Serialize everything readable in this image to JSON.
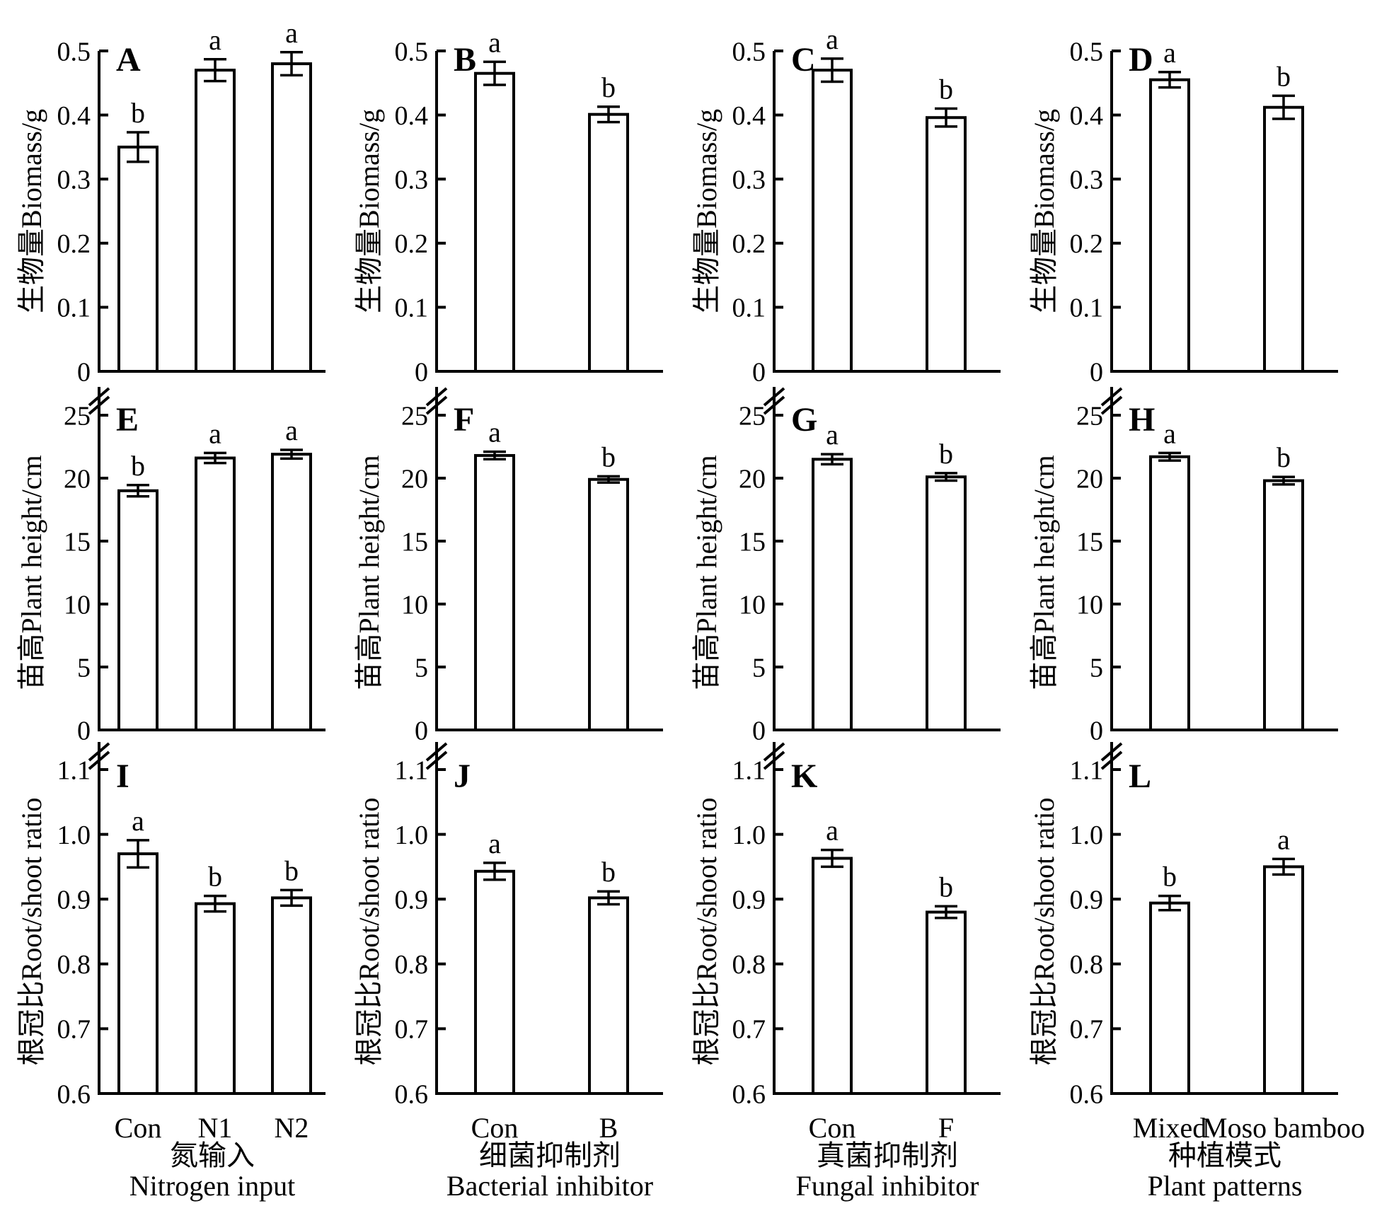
{
  "figure": {
    "background": "#ffffff",
    "ink": "#000000",
    "description": "Twelve-panel bar chart figure (A-L): effects of nitrogen input, bacterial inhibitor, fungal inhibitor and plant patterns on biomass, plant height and root/shoot ratio"
  },
  "chart_data": {
    "type": "bar",
    "bar_fill": "#ffffff",
    "bar_stroke": "#000000",
    "error_bar_style": "capped, plus-minus",
    "rows": [
      {
        "ylabel": "生物量Biomass/g",
        "ylim": [
          0,
          0.5
        ],
        "yticks": [
          0,
          0.1,
          0.2,
          0.3,
          0.4,
          0.5
        ],
        "ytick_labels": [
          "0",
          "0.1",
          "0.2",
          "0.3",
          "0.4",
          "0.5"
        ],
        "axis_break_top": false
      },
      {
        "ylabel": "苗高Plant height/cm",
        "ylim": [
          0,
          25
        ],
        "yticks": [
          0,
          5,
          10,
          15,
          20,
          25
        ],
        "ytick_labels": [
          "0",
          "5",
          "10",
          "15",
          "20",
          "25"
        ],
        "axis_break_top": true
      },
      {
        "ylabel": "根冠比Root/shoot ratio",
        "ylim": [
          0.6,
          1.1
        ],
        "yticks": [
          0.6,
          0.7,
          0.8,
          0.9,
          1.0,
          1.1
        ],
        "ytick_labels": [
          "0.6",
          "0.7",
          "0.8",
          "0.9",
          "1.0",
          "1.1"
        ],
        "axis_break_top": true
      }
    ],
    "columns": [
      {
        "categories": [
          "Con",
          "N1",
          "N2"
        ],
        "factor_cn": "氮输入",
        "factor_en": "Nitrogen input"
      },
      {
        "categories": [
          "Con",
          "B"
        ],
        "factor_cn": "细菌抑制剂",
        "factor_en": "Bacterial inhibitor"
      },
      {
        "categories": [
          "Con",
          "F"
        ],
        "factor_cn": "真菌抑制剂",
        "factor_en": "Fungal inhibitor"
      },
      {
        "categories": [
          "Mixed",
          "Moso bamboo"
        ],
        "factor_cn": "种植模式",
        "factor_en": "Plant patterns"
      }
    ],
    "panels": [
      {
        "letter": "A",
        "row": 0,
        "col": 0,
        "values": [
          0.35,
          0.47,
          0.48
        ],
        "errors": [
          0.023,
          0.017,
          0.018
        ],
        "sig": [
          "b",
          "a",
          "a"
        ]
      },
      {
        "letter": "B",
        "row": 0,
        "col": 1,
        "values": [
          0.465,
          0.401
        ],
        "errors": [
          0.018,
          0.012
        ],
        "sig": [
          "a",
          "b"
        ]
      },
      {
        "letter": "C",
        "row": 0,
        "col": 2,
        "values": [
          0.47,
          0.396
        ],
        "errors": [
          0.018,
          0.014
        ],
        "sig": [
          "a",
          "b"
        ]
      },
      {
        "letter": "D",
        "row": 0,
        "col": 3,
        "values": [
          0.455,
          0.412
        ],
        "errors": [
          0.012,
          0.018
        ],
        "sig": [
          "a",
          "b"
        ]
      },
      {
        "letter": "E",
        "row": 1,
        "col": 0,
        "values": [
          19.0,
          21.6,
          21.9
        ],
        "errors": [
          0.45,
          0.4,
          0.35
        ],
        "sig": [
          "b",
          "a",
          "a"
        ]
      },
      {
        "letter": "F",
        "row": 1,
        "col": 1,
        "values": [
          21.8,
          19.9
        ],
        "errors": [
          0.3,
          0.25
        ],
        "sig": [
          "a",
          "b"
        ]
      },
      {
        "letter": "G",
        "row": 1,
        "col": 2,
        "values": [
          21.5,
          20.1
        ],
        "errors": [
          0.4,
          0.3
        ],
        "sig": [
          "a",
          "b"
        ]
      },
      {
        "letter": "H",
        "row": 1,
        "col": 3,
        "values": [
          21.7,
          19.8
        ],
        "errors": [
          0.3,
          0.3
        ],
        "sig": [
          "a",
          "b"
        ]
      },
      {
        "letter": "I",
        "row": 2,
        "col": 0,
        "values": [
          0.97,
          0.893,
          0.902
        ],
        "errors": [
          0.021,
          0.012,
          0.012
        ],
        "sig": [
          "a",
          "b",
          "b"
        ]
      },
      {
        "letter": "J",
        "row": 2,
        "col": 1,
        "values": [
          0.943,
          0.902
        ],
        "errors": [
          0.013,
          0.01
        ],
        "sig": [
          "a",
          "b"
        ]
      },
      {
        "letter": "K",
        "row": 2,
        "col": 2,
        "values": [
          0.963,
          0.88
        ],
        "errors": [
          0.013,
          0.009
        ],
        "sig": [
          "a",
          "b"
        ]
      },
      {
        "letter": "L",
        "row": 2,
        "col": 3,
        "values": [
          0.894,
          0.95
        ],
        "errors": [
          0.011,
          0.012
        ],
        "sig": [
          "b",
          "a"
        ]
      }
    ]
  }
}
